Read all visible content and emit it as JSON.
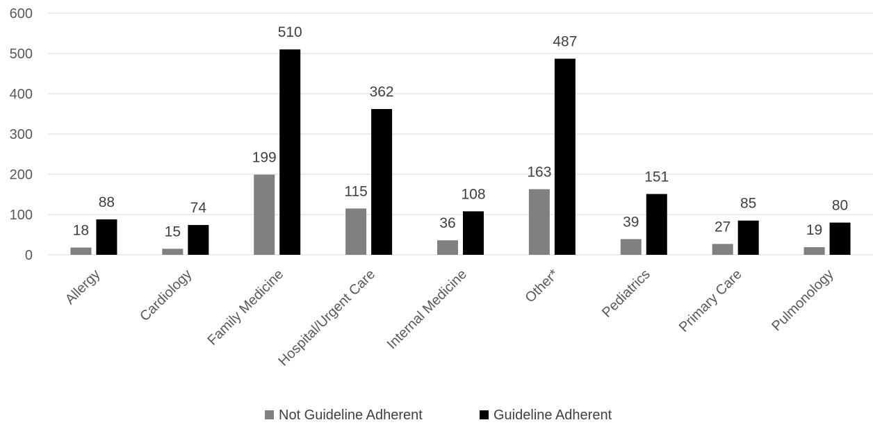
{
  "chart_data": {
    "type": "bar",
    "title": "",
    "xlabel": "",
    "ylabel": "",
    "categories": [
      "Allergy",
      "Cardiology",
      "Family Medicine",
      "Hospital/Urgent Care",
      "Internal Medicine",
      "Other*",
      "Pediatrics",
      "Primary Care",
      "Pulmonology"
    ],
    "series": [
      {
        "name": "Not Guideline Adherent",
        "color": "#808080",
        "values": [
          18,
          15,
          199,
          115,
          36,
          163,
          39,
          27,
          19
        ]
      },
      {
        "name": "Guideline Adherent",
        "color": "#000000",
        "values": [
          88,
          74,
          510,
          362,
          108,
          487,
          151,
          85,
          80
        ]
      }
    ],
    "ylim": [
      0,
      600
    ],
    "yticks": [
      0,
      100,
      200,
      300,
      400,
      500,
      600
    ],
    "grid": true,
    "legend_position": "bottom",
    "data_labels": true
  }
}
